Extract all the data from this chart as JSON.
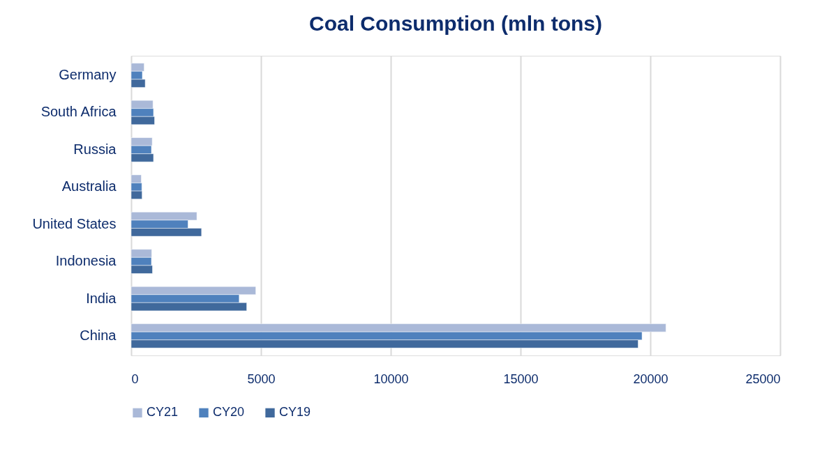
{
  "chart_data": {
    "type": "bar",
    "orientation": "horizontal",
    "title": "Coal Consumption (mln tons)",
    "categories": [
      "Germany",
      "South Africa",
      "Russia",
      "Australia",
      "United States",
      "Indonesia",
      "India",
      "China"
    ],
    "series": [
      {
        "name": "CY21",
        "color": "#aab9d8",
        "values": [
          500,
          840,
          810,
          390,
          2530,
          790,
          4800,
          20600
        ]
      },
      {
        "name": "CY20",
        "color": "#4f81bd",
        "values": [
          430,
          860,
          780,
          410,
          2190,
          780,
          4160,
          19680
        ]
      },
      {
        "name": "CY19",
        "color": "#40699c",
        "values": [
          540,
          900,
          860,
          420,
          2710,
          820,
          4450,
          19530
        ]
      }
    ],
    "xlim": [
      0,
      25000
    ],
    "xticks": [
      0,
      5000,
      10000,
      15000,
      20000,
      25000
    ],
    "grid": "x",
    "legend": "bottom"
  }
}
